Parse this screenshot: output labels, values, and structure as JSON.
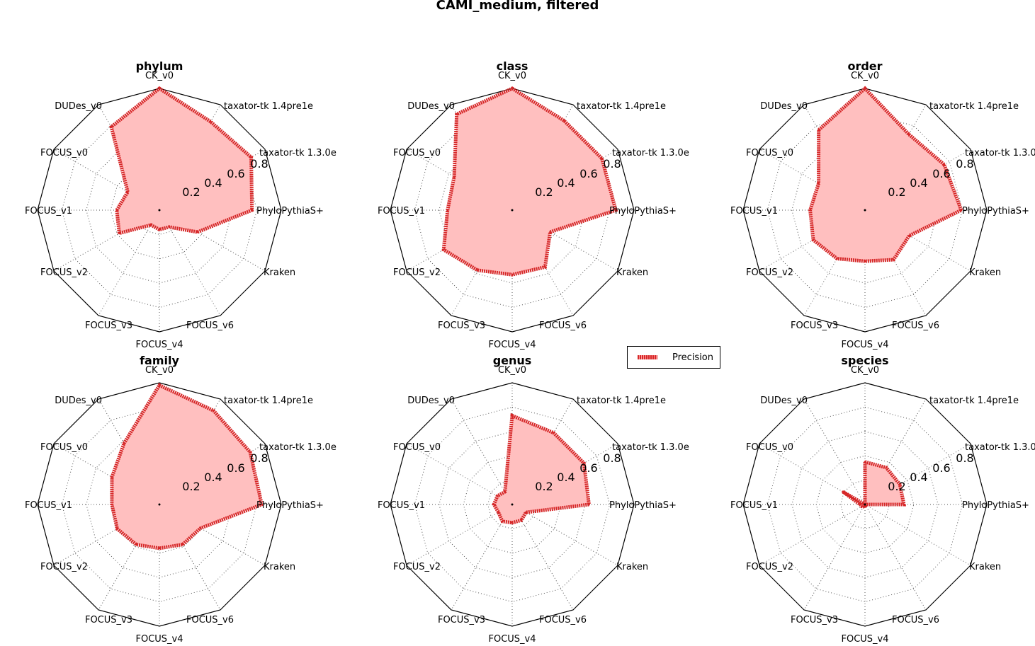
{
  "chart_data": {
    "type": "radar",
    "title": "CAMI_medium, filtered",
    "legend": {
      "placement": "center",
      "entries": [
        "Precision"
      ]
    },
    "series_color": "#d62728",
    "fill_color": "#ffbfbf",
    "axes": [
      "CK_v0",
      "taxator-tk 1.4pre1e",
      "taxator-tk 1.3.0e",
      "PhyloPythiaS+",
      "Kraken",
      "FOCUS_v6",
      "FOCUS_v4",
      "FOCUS_v3",
      "FOCUS_v2",
      "FOCUS_v1",
      "FOCUS_v0",
      "DUDes_v0"
    ],
    "radial_range": [
      0,
      1
    ],
    "radial_ticks": [
      "0.2",
      "0.4",
      "0.6",
      "0.8"
    ],
    "grid": true,
    "panels": [
      {
        "title": "phylum",
        "series": [
          {
            "name": "Precision",
            "values": [
              1.0,
              0.84,
              0.87,
              0.76,
              0.36,
              0.16,
              0.16,
              0.14,
              0.38,
              0.35,
              0.3,
              0.79
            ]
          }
        ]
      },
      {
        "title": "class",
        "series": [
          {
            "name": "Precision",
            "values": [
              1.0,
              0.85,
              0.85,
              0.85,
              0.36,
              0.54,
              0.53,
              0.57,
              0.65,
              0.53,
              0.55,
              0.91
            ]
          }
        ]
      },
      {
        "title": "order",
        "series": [
          {
            "name": "Precision",
            "values": [
              1.0,
              0.72,
              0.75,
              0.79,
              0.42,
              0.47,
              0.42,
              0.46,
              0.49,
              0.45,
              0.44,
              0.76
            ]
          }
        ]
      },
      {
        "title": "family",
        "series": [
          {
            "name": "Precision",
            "values": [
              0.98,
              0.89,
              0.86,
              0.84,
              0.39,
              0.38,
              0.36,
              0.38,
              0.4,
              0.39,
              0.45,
              0.58
            ]
          }
        ]
      },
      {
        "title": "genus",
        "series": [
          {
            "name": "Precision",
            "values": [
              0.73,
              0.68,
              0.68,
              0.63,
              0.13,
              0.15,
              0.15,
              0.16,
              0.13,
              0.15,
              0.14,
              0.12
            ]
          }
        ]
      },
      {
        "title": "species",
        "series": [
          {
            "name": "Precision",
            "values": [
              0.35,
              0.35,
              0.33,
              0.32,
              0.0,
              0.01,
              0.02,
              0.02,
              0.03,
              0.04,
              0.21,
              0.0
            ]
          }
        ]
      }
    ]
  }
}
